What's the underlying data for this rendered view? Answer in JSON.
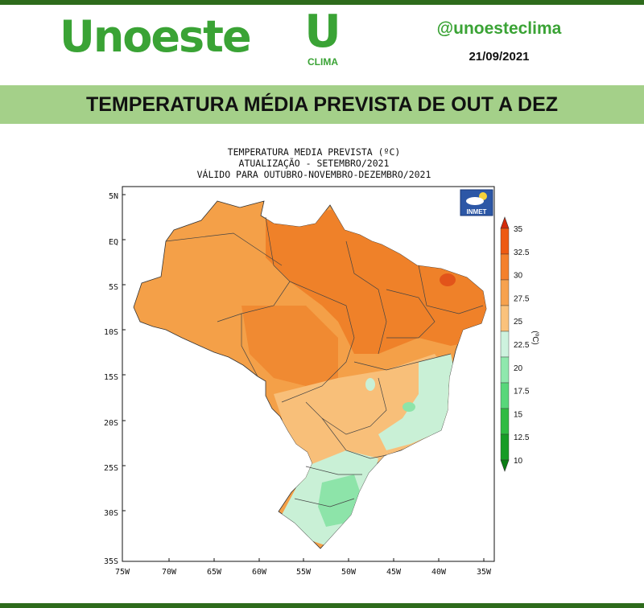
{
  "header": {
    "logo_text": "Unoeste",
    "clima_logo_letter": "U",
    "clima_logo_word": "CLIMA",
    "social_handle": "@unoesteclima",
    "date": "21/09/2021"
  },
  "banner": {
    "title": "TEMPERATURA MÉDIA PREVISTA DE OUT A DEZ"
  },
  "map": {
    "title_lines": [
      "TEMPERATURA MEDIA PREVISTA (ºC)",
      "ATUALIZAÇÃO - SETEMBRO/2021",
      "VÁLIDO PARA OUTUBRO-NOVEMBRO-DEZEMBRO/2021"
    ],
    "badge": "INMET",
    "lat_labels": [
      "5N",
      "EQ",
      "5S",
      "10S",
      "15S",
      "20S",
      "25S",
      "30S",
      "35S"
    ],
    "lon_labels": [
      "75W",
      "70W",
      "65W",
      "60W",
      "55W",
      "50W",
      "45W",
      "40W",
      "35W"
    ],
    "colorbar": {
      "unit_label": "(ºC)",
      "ticks": [
        "35",
        "32.5",
        "30",
        "27.5",
        "25",
        "22.5",
        "20",
        "17.5",
        "15",
        "12.5",
        "10"
      ],
      "colors": [
        "#d42a0a",
        "#ee5a12",
        "#f4802c",
        "#f7a24e",
        "#fac27c",
        "#cdf2de",
        "#8fe8ad",
        "#58d77a",
        "#2fbb43",
        "#169c26",
        "#0a7d14"
      ]
    }
  },
  "colors": {
    "brand_green": "#3aa335",
    "dark_green_bar": "#2e6b1c",
    "banner_green": "#a4d089"
  }
}
